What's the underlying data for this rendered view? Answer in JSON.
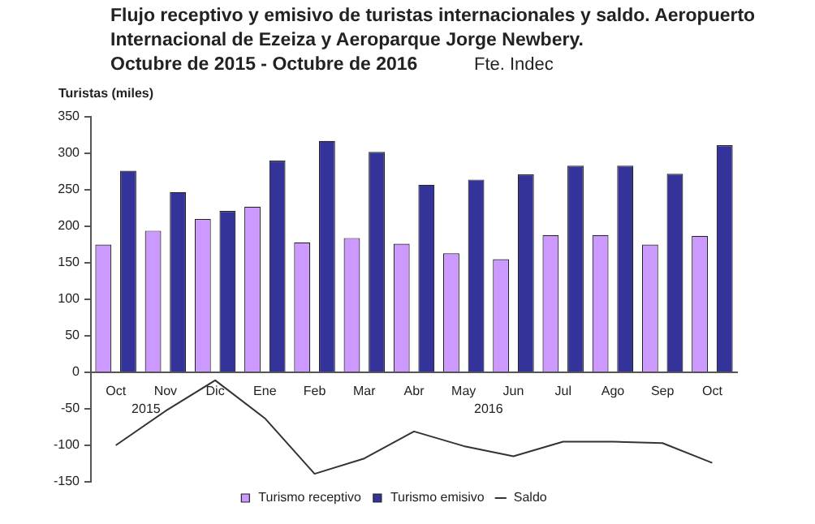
{
  "chart_data": {
    "type": "bar",
    "title": "Flujo receptivo y emisivo de turistas internacionales y saldo. Aeropuerto Internacional de Ezeiza y Aeroparque Jorge Newbery.\nOctubre de 2015 - Octubre de 2016",
    "ylabel": "Turistas (miles)",
    "annotations": [
      "Fte. Indec",
      "2015",
      "2016"
    ],
    "categories": [
      "Oct",
      "Nov",
      "Dic",
      "Ene",
      "Feb",
      "Mar",
      "Abr",
      "May",
      "Jun",
      "Jul",
      "Ago",
      "Sep",
      "Oct"
    ],
    "series": [
      {
        "name": "Turismo receptivo",
        "color": "#cc99ff",
        "values": [
          175,
          194,
          210,
          227,
          178,
          184,
          176,
          163,
          155,
          188,
          188,
          175,
          187
        ]
      },
      {
        "name": "Turismo emisivo",
        "color": "#333399",
        "values": [
          276,
          247,
          221,
          290,
          317,
          302,
          257,
          264,
          271,
          283,
          283,
          272,
          311
        ]
      },
      {
        "name": "Saldo",
        "type": "line",
        "color": "#333333",
        "marker": "none",
        "values": [
          -100,
          -53,
          -11,
          -63,
          -139,
          -118,
          -81,
          -101,
          -115,
          -95,
          -95,
          -97,
          -124
        ]
      }
    ],
    "ylim": [
      -150,
      350
    ],
    "yticks": [
      -150,
      -100,
      -50,
      0,
      50,
      100,
      150,
      200,
      250,
      300,
      350
    ],
    "grid": false,
    "legend": "bottom"
  }
}
